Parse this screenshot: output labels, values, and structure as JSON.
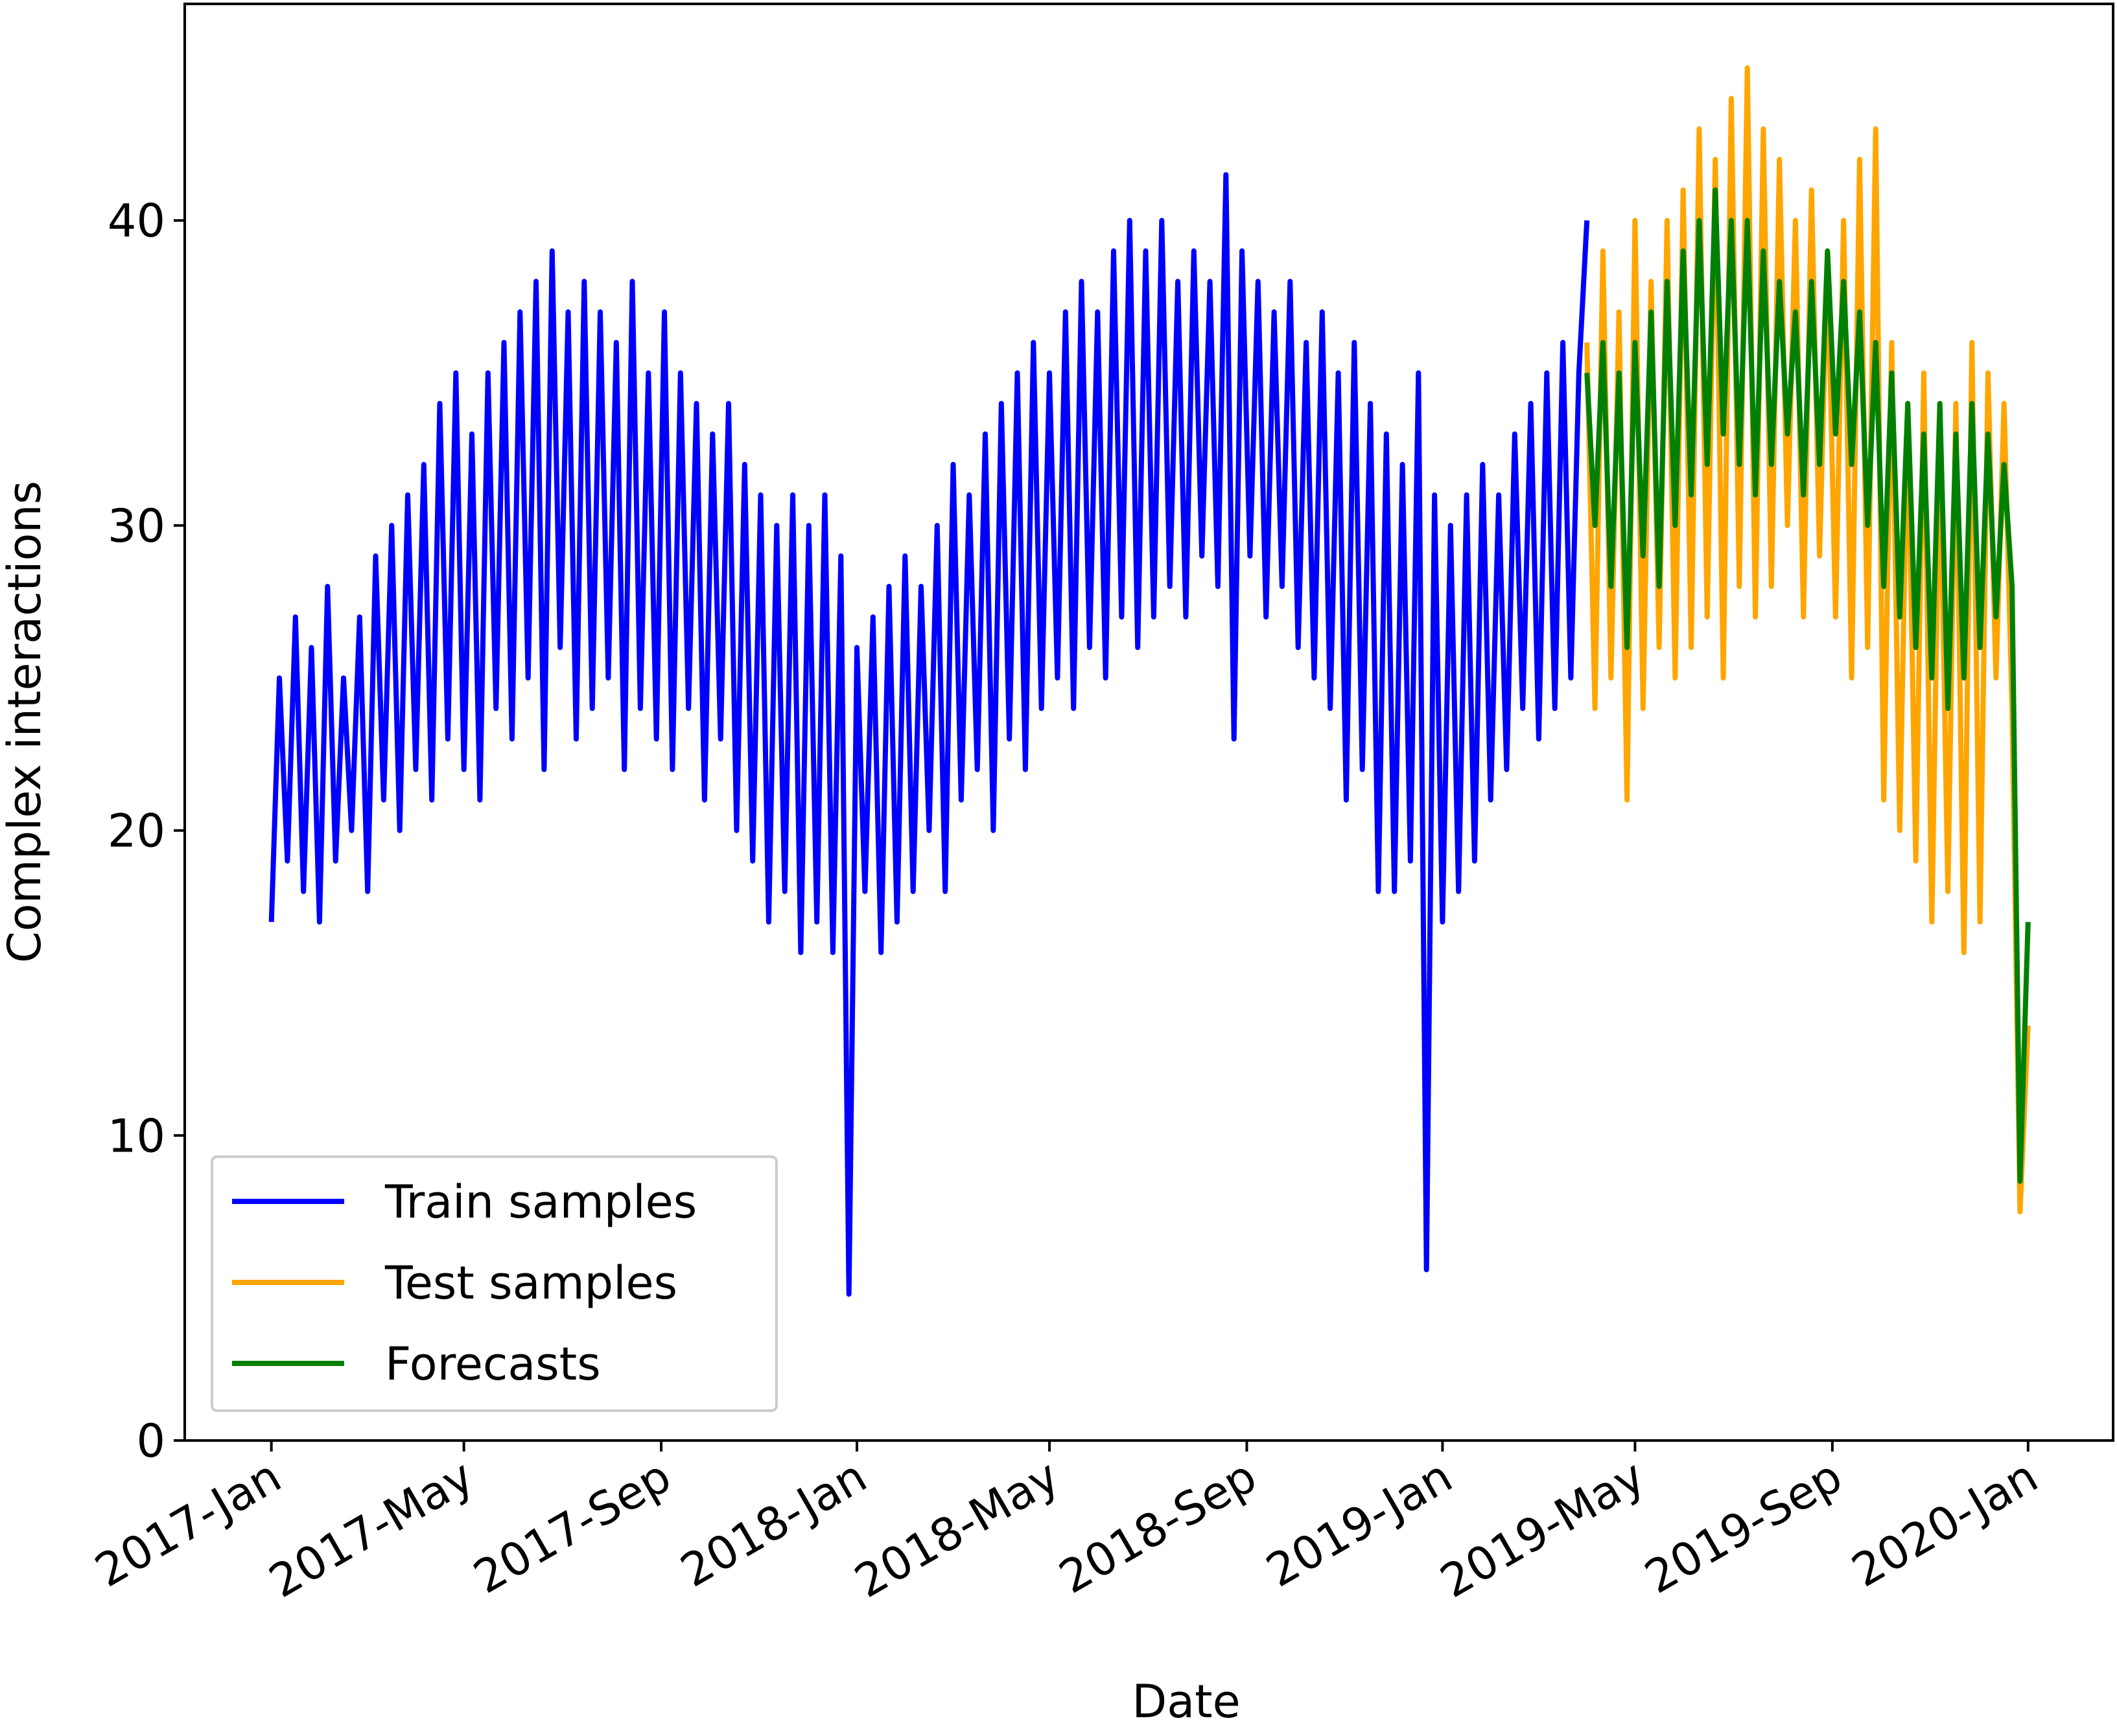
{
  "chart_data": {
    "type": "line",
    "x_label": "Date",
    "y_label": "Complex interactions",
    "xlim": [
      -54,
      1148
    ],
    "ylim": [
      0,
      47.1
    ],
    "xticks": [
      {
        "value": 0,
        "label": "2017-Jan"
      },
      {
        "value": 120,
        "label": "2017-May"
      },
      {
        "value": 243,
        "label": "2017-Sep"
      },
      {
        "value": 365,
        "label": "2018-Jan"
      },
      {
        "value": 485,
        "label": "2018-May"
      },
      {
        "value": 608,
        "label": "2018-Sep"
      },
      {
        "value": 730,
        "label": "2019-Jan"
      },
      {
        "value": 850,
        "label": "2019-May"
      },
      {
        "value": 973,
        "label": "2019-Sep"
      },
      {
        "value": 1095,
        "label": "2020-Jan"
      }
    ],
    "yticks": [
      0,
      10,
      20,
      30,
      40
    ],
    "legend": "lower left",
    "series": [
      {
        "name": "Train samples",
        "color": "#0000ff",
        "x": [
          0,
          5,
          10,
          15,
          20,
          25,
          30,
          35,
          40,
          45,
          50,
          55,
          60,
          65,
          70,
          75,
          80,
          85,
          90,
          95,
          100,
          105,
          110,
          115,
          120,
          125,
          130,
          135,
          140,
          145,
          150,
          155,
          160,
          165,
          170,
          175,
          180,
          185,
          190,
          195,
          200,
          205,
          210,
          215,
          220,
          225,
          230,
          235,
          240,
          245,
          250,
          255,
          260,
          265,
          270,
          275,
          280,
          285,
          290,
          295,
          300,
          305,
          310,
          315,
          320,
          325,
          330,
          335,
          340,
          345,
          350,
          355,
          360,
          365,
          370,
          375,
          380,
          385,
          390,
          395,
          400,
          405,
          410,
          415,
          420,
          425,
          430,
          435,
          440,
          445,
          450,
          455,
          460,
          465,
          470,
          475,
          480,
          485,
          490,
          495,
          500,
          505,
          510,
          515,
          520,
          525,
          530,
          535,
          540,
          545,
          550,
          555,
          560,
          565,
          570,
          575,
          580,
          585,
          590,
          595,
          600,
          605,
          610,
          615,
          620,
          625,
          630,
          635,
          640,
          645,
          650,
          655,
          660,
          665,
          670,
          675,
          680,
          685,
          690,
          695,
          700,
          705,
          710,
          715,
          720,
          725,
          730,
          735,
          740,
          745,
          750,
          755,
          760,
          765,
          770,
          775,
          780,
          785,
          790,
          795,
          800,
          805,
          810,
          815,
          820
        ],
        "values": [
          17,
          25,
          19,
          27,
          18,
          26,
          17,
          28,
          19,
          25,
          20,
          27,
          18,
          29,
          21,
          30,
          20,
          31,
          22,
          32,
          21,
          34,
          23,
          35,
          22,
          33,
          21,
          35,
          24,
          36,
          23,
          37,
          25,
          38,
          22,
          39,
          26,
          37,
          23,
          38,
          24,
          37,
          25,
          36,
          22,
          38,
          24,
          35,
          23,
          37,
          22,
          35,
          24,
          34,
          21,
          33,
          23,
          34,
          20,
          32,
          19,
          31,
          17,
          30,
          18,
          31,
          16,
          30,
          17,
          31,
          16,
          29,
          4.8,
          26,
          18,
          27,
          16,
          28,
          17,
          29,
          18,
          28,
          20,
          30,
          18,
          32,
          21,
          31,
          22,
          33,
          20,
          34,
          23,
          35,
          22,
          36,
          24,
          35,
          25,
          37,
          24,
          38,
          26,
          37,
          25,
          39,
          27,
          40,
          26,
          39,
          27,
          40,
          28,
          38,
          27,
          39,
          29,
          38,
          28,
          41.5,
          23,
          39,
          29,
          38,
          27,
          37,
          28,
          38,
          26,
          36,
          25,
          37,
          24,
          35,
          21,
          36,
          22,
          34,
          18,
          33,
          18,
          32,
          19,
          35,
          5.6,
          31,
          17,
          30,
          18,
          31,
          19,
          32,
          21,
          31,
          22,
          33,
          24,
          34,
          23,
          35,
          24,
          36,
          25,
          35,
          40
        ]
      },
      {
        "name": "Test samples",
        "color": "#ffa500",
        "x": [
          820,
          825,
          830,
          835,
          840,
          845,
          850,
          855,
          860,
          865,
          870,
          875,
          880,
          885,
          890,
          895,
          900,
          905,
          910,
          915,
          920,
          925,
          930,
          935,
          940,
          945,
          950,
          955,
          960,
          965,
          970,
          975,
          980,
          985,
          990,
          995,
          1000,
          1005,
          1010,
          1015,
          1020,
          1025,
          1030,
          1035,
          1040,
          1045,
          1050,
          1055,
          1060,
          1065,
          1070,
          1075,
          1080,
          1085,
          1090,
          1095
        ],
        "values": [
          36,
          24,
          39,
          25,
          37,
          21,
          40,
          24,
          38,
          26,
          40,
          25,
          41,
          26,
          43,
          27,
          42,
          25,
          44,
          28,
          45,
          27,
          43,
          28,
          42,
          30,
          40,
          27,
          41,
          29,
          39,
          27,
          40,
          25,
          42,
          26,
          43,
          21,
          36,
          20,
          34,
          19,
          35,
          17,
          33,
          18,
          34,
          16,
          36,
          17,
          35,
          25,
          34,
          24,
          7.5,
          13.6
        ]
      },
      {
        "name": "Forecasts",
        "color": "#008000",
        "x": [
          820,
          825,
          830,
          835,
          840,
          845,
          850,
          855,
          860,
          865,
          870,
          875,
          880,
          885,
          890,
          895,
          900,
          905,
          910,
          915,
          920,
          925,
          930,
          935,
          940,
          945,
          950,
          955,
          960,
          965,
          970,
          975,
          980,
          985,
          990,
          995,
          1000,
          1005,
          1010,
          1015,
          1020,
          1025,
          1030,
          1035,
          1040,
          1045,
          1050,
          1055,
          1060,
          1065,
          1070,
          1075,
          1080,
          1085,
          1090,
          1095
        ],
        "values": [
          35,
          30,
          36,
          28,
          35,
          26,
          36,
          29,
          37,
          28,
          38,
          30,
          39,
          31,
          40,
          32,
          41,
          33,
          40,
          32,
          40,
          31,
          39,
          32,
          38,
          33,
          37,
          31,
          38,
          32,
          39,
          33,
          38,
          32,
          37,
          30,
          36,
          28,
          35,
          27,
          34,
          26,
          33,
          25,
          34,
          24,
          33,
          25,
          34,
          26,
          33,
          27,
          32,
          28,
          8.5,
          17
        ]
      }
    ]
  }
}
